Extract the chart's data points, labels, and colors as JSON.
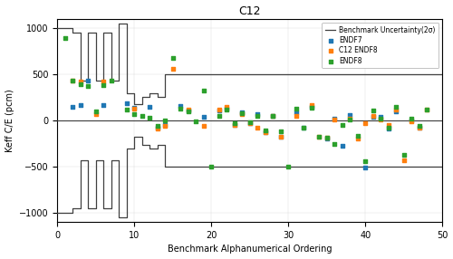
{
  "title": "C12",
  "xlabel": "Benchmark Alphanumerical Ordering",
  "ylabel": "Keff C/E (pcm)",
  "xlim": [
    0,
    50
  ],
  "ylim": [
    -1100,
    1100
  ],
  "yticks": [
    -1000,
    -500,
    0,
    500,
    1000
  ],
  "xticks": [
    0,
    10,
    20,
    30,
    40,
    50
  ],
  "uncertainty_x": [
    0,
    1,
    2,
    3,
    4,
    5,
    6,
    7,
    8,
    9,
    10,
    11,
    12,
    13,
    14,
    15,
    16,
    17,
    18,
    19,
    20,
    21,
    22,
    23,
    24,
    25,
    26,
    27,
    28,
    29,
    30,
    31,
    32,
    33,
    34,
    35,
    36,
    37,
    38,
    39,
    40,
    41,
    42,
    43,
    44,
    45,
    46,
    47,
    48,
    49,
    50
  ],
  "uncertainty_upper": [
    1000,
    1000,
    950,
    430,
    950,
    430,
    950,
    430,
    1050,
    300,
    180,
    260,
    300,
    260,
    500,
    500,
    500,
    500,
    500,
    500,
    500,
    500,
    500,
    500,
    500,
    500,
    500,
    500,
    500,
    500,
    500,
    500,
    500,
    500,
    500,
    500,
    500,
    500,
    500,
    500,
    500,
    500,
    500,
    500,
    500,
    500,
    500,
    500,
    500,
    500,
    500
  ],
  "uncertainty_lower": [
    -1000,
    -1000,
    -950,
    -430,
    -950,
    -430,
    -950,
    -430,
    -1050,
    -300,
    -180,
    -260,
    -300,
    -260,
    -500,
    -500,
    -500,
    -500,
    -500,
    -500,
    -500,
    -500,
    -500,
    -500,
    -500,
    -500,
    -500,
    -500,
    -500,
    -500,
    -500,
    -500,
    -500,
    -500,
    -500,
    -500,
    -500,
    -500,
    -500,
    -500,
    -500,
    -500,
    -500,
    -500,
    -500,
    -500,
    -500,
    -500,
    -500,
    -500,
    -500
  ],
  "endf7_x": [
    2,
    3,
    4,
    6,
    9,
    10,
    12,
    13,
    14,
    16,
    17,
    19,
    21,
    22,
    23,
    24,
    25,
    26,
    27,
    28,
    29,
    31,
    32,
    33,
    35,
    36,
    37,
    38,
    40,
    41,
    42,
    43,
    44,
    46,
    47
  ],
  "endf7_y": [
    150,
    170,
    430,
    170,
    190,
    135,
    145,
    -75,
    -50,
    155,
    105,
    40,
    105,
    125,
    -50,
    85,
    -30,
    75,
    -130,
    50,
    -180,
    85,
    -75,
    145,
    -195,
    25,
    -275,
    65,
    -510,
    45,
    45,
    -90,
    95,
    0,
    -75
  ],
  "c12endf8_x": [
    2,
    3,
    5,
    6,
    10,
    13,
    14,
    15,
    17,
    19,
    21,
    22,
    23,
    24,
    25,
    26,
    27,
    28,
    29,
    31,
    33,
    34,
    35,
    36,
    38,
    39,
    40,
    41,
    42,
    43,
    44,
    45,
    46,
    47,
    48
  ],
  "c12endf8_y": [
    430,
    420,
    75,
    420,
    125,
    -90,
    -60,
    565,
    120,
    -60,
    120,
    145,
    -45,
    75,
    -30,
    -80,
    -125,
    55,
    -180,
    50,
    165,
    -175,
    -190,
    10,
    25,
    -195,
    -30,
    55,
    10,
    -45,
    120,
    -430,
    -10,
    -75,
    115
  ],
  "endf8_x": [
    1,
    2,
    3,
    4,
    5,
    6,
    7,
    9,
    10,
    11,
    12,
    13,
    14,
    15,
    16,
    17,
    18,
    19,
    20,
    21,
    22,
    23,
    24,
    25,
    26,
    27,
    28,
    29,
    30,
    31,
    32,
    33,
    34,
    35,
    36,
    37,
    38,
    39,
    40,
    41,
    42,
    43,
    44,
    45,
    46,
    47,
    48
  ],
  "endf8_y": [
    890,
    430,
    390,
    375,
    100,
    385,
    430,
    120,
    75,
    50,
    35,
    -55,
    5,
    680,
    125,
    95,
    -10,
    325,
    -500,
    55,
    115,
    -30,
    80,
    -20,
    50,
    -110,
    55,
    -120,
    -500,
    125,
    -80,
    135,
    -175,
    -190,
    -250,
    -50,
    15,
    -165,
    -445,
    110,
    25,
    -80,
    150,
    -370,
    25,
    -60,
    120
  ],
  "endf7_color": "#1f77b4",
  "c12endf8_color": "#ff7f0e",
  "endf8_color": "#2ca02c",
  "line_color": "#404040",
  "background": "#ffffff"
}
